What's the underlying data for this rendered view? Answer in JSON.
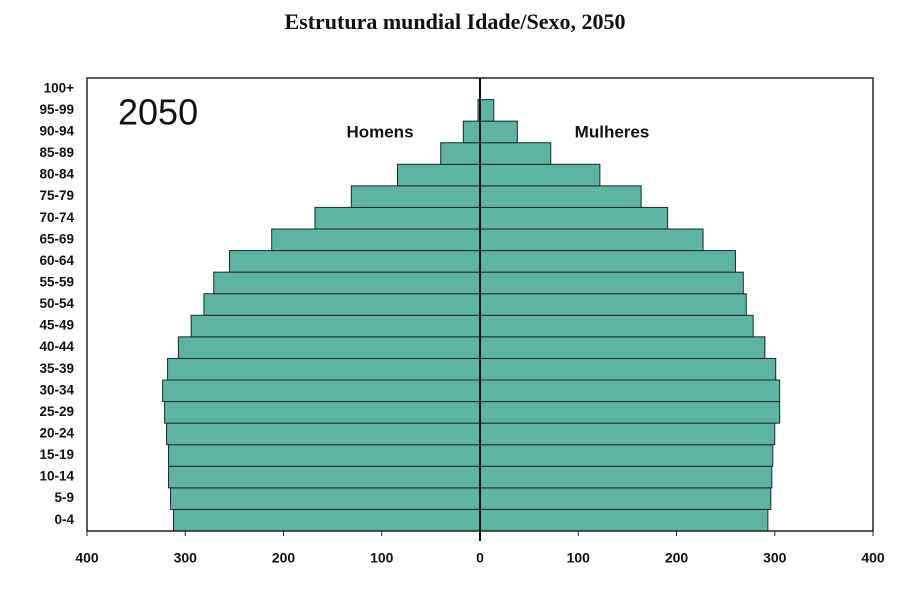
{
  "chart_data": {
    "type": "pyramid",
    "title": "Estrutura mundial Idade/Sexo, 2050",
    "annotation": "2050",
    "categories": [
      "0-4",
      "5-9",
      "10-14",
      "15-19",
      "20-24",
      "25-29",
      "30-34",
      "35-39",
      "40-44",
      "45-49",
      "50-54",
      "55-59",
      "60-64",
      "65-69",
      "70-74",
      "75-79",
      "80-84",
      "85-89",
      "90-94",
      "95-99",
      "100+"
    ],
    "series": [
      {
        "name": "Homens",
        "color": "#5db5a1",
        "values": [
          -312,
          -315,
          -317,
          -317,
          -319,
          -321,
          -323,
          -318,
          -307,
          -294,
          -281,
          -271,
          -255,
          -212,
          -168,
          -131,
          -84,
          -40,
          -17,
          -2,
          0
        ]
      },
      {
        "name": "Mulheres",
        "color": "#5db5a1",
        "values": [
          293,
          296,
          297,
          298,
          300,
          305,
          305,
          301,
          290,
          278,
          271,
          268,
          260,
          227,
          191,
          164,
          122,
          72,
          38,
          14,
          0
        ]
      }
    ],
    "xlim": [
      -400,
      400
    ],
    "xticks": [
      {
        "value": -400,
        "label": "400"
      },
      {
        "value": -300,
        "label": "300"
      },
      {
        "value": -200,
        "label": "200"
      },
      {
        "value": -100,
        "label": "100"
      },
      0,
      100,
      200,
      300,
      400
    ]
  }
}
